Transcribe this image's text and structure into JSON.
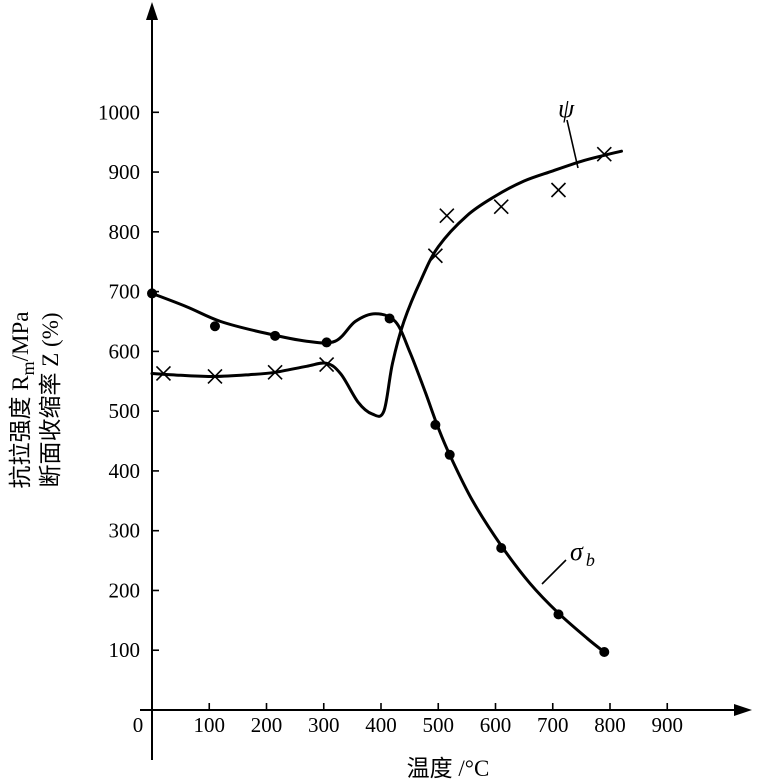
{
  "chart_data": {
    "type": "line",
    "xlabel": "温度 /°C",
    "ylabel_line1": "抗拉强度 R",
    "ylabel_line1_sub": "m",
    "ylabel_line1_unit": "/MPa",
    "ylabel_line2": "断面收缩率 Z (%)",
    "xlim": [
      0,
      1000
    ],
    "ylim": [
      0,
      1100
    ],
    "x_ticks": [
      0,
      100,
      200,
      300,
      400,
      500,
      600,
      700,
      800,
      900
    ],
    "y_ticks": [
      100,
      200,
      300,
      400,
      500,
      600,
      700,
      800,
      900,
      1000
    ],
    "grid": false,
    "series": [
      {
        "name": "σ",
        "name_sub": "b",
        "marker": "dot",
        "points": [
          [
            0,
            697
          ],
          [
            110,
            642
          ],
          [
            215,
            626
          ],
          [
            305,
            615
          ],
          [
            415,
            655
          ],
          [
            495,
            477
          ],
          [
            520,
            427
          ],
          [
            610,
            271
          ],
          [
            710,
            160
          ],
          [
            790,
            97
          ]
        ],
        "curve": [
          [
            0,
            697
          ],
          [
            60,
            675
          ],
          [
            120,
            650
          ],
          [
            200,
            630
          ],
          [
            270,
            617
          ],
          [
            320,
            617
          ],
          [
            355,
            650
          ],
          [
            390,
            663
          ],
          [
            425,
            650
          ],
          [
            450,
            600
          ],
          [
            478,
            530
          ],
          [
            500,
            472
          ],
          [
            520,
            427
          ],
          [
            560,
            350
          ],
          [
            610,
            275
          ],
          [
            660,
            212
          ],
          [
            710,
            162
          ],
          [
            760,
            120
          ],
          [
            790,
            97
          ]
        ]
      },
      {
        "name": "ψ",
        "marker": "cross",
        "points": [
          [
            20,
            563
          ],
          [
            110,
            558
          ],
          [
            215,
            565
          ],
          [
            305,
            578
          ],
          [
            495,
            760
          ],
          [
            515,
            827
          ],
          [
            610,
            842
          ],
          [
            710,
            870
          ],
          [
            790,
            930
          ]
        ],
        "curve": [
          [
            0,
            563
          ],
          [
            50,
            560
          ],
          [
            110,
            558
          ],
          [
            170,
            561
          ],
          [
            215,
            565
          ],
          [
            270,
            575
          ],
          [
            305,
            580
          ],
          [
            330,
            562
          ],
          [
            360,
            515
          ],
          [
            385,
            495
          ],
          [
            405,
            500
          ],
          [
            420,
            580
          ],
          [
            440,
            650
          ],
          [
            470,
            720
          ],
          [
            500,
            775
          ],
          [
            550,
            827
          ],
          [
            600,
            860
          ],
          [
            650,
            885
          ],
          [
            700,
            902
          ],
          [
            750,
            918
          ],
          [
            790,
            928
          ],
          [
            820,
            935
          ]
        ]
      }
    ]
  }
}
